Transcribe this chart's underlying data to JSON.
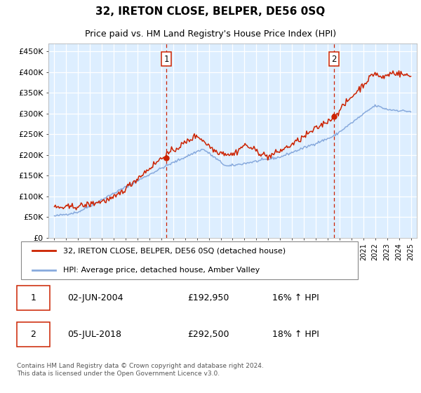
{
  "title": "32, IRETON CLOSE, BELPER, DE56 0SQ",
  "subtitle": "Price paid vs. HM Land Registry's House Price Index (HPI)",
  "bg_color": "#ddeeff",
  "red_color": "#cc2200",
  "blue_color": "#88aadd",
  "red_label": "32, IRETON CLOSE, BELPER, DE56 0SQ (detached house)",
  "blue_label": "HPI: Average price, detached house, Amber Valley",
  "footnote": "Contains HM Land Registry data © Crown copyright and database right 2024.\nThis data is licensed under the Open Government Licence v3.0.",
  "sale1_date": "02-JUN-2004",
  "sale1_price": "£192,950",
  "sale1_hpi": "16% ↑ HPI",
  "sale1_year": 2004.42,
  "sale1_value": 192950,
  "sale2_date": "05-JUL-2018",
  "sale2_price": "£292,500",
  "sale2_hpi": "18% ↑ HPI",
  "sale2_year": 2018.51,
  "sale2_value": 292500,
  "ylim": [
    0,
    470000
  ],
  "yticks": [
    0,
    50000,
    100000,
    150000,
    200000,
    250000,
    300000,
    350000,
    400000,
    450000
  ],
  "ytick_labels": [
    "£0",
    "£50K",
    "£100K",
    "£150K",
    "£200K",
    "£250K",
    "£300K",
    "£350K",
    "£400K",
    "£450K"
  ],
  "xlim_start": 1994.5,
  "xlim_end": 2025.5
}
